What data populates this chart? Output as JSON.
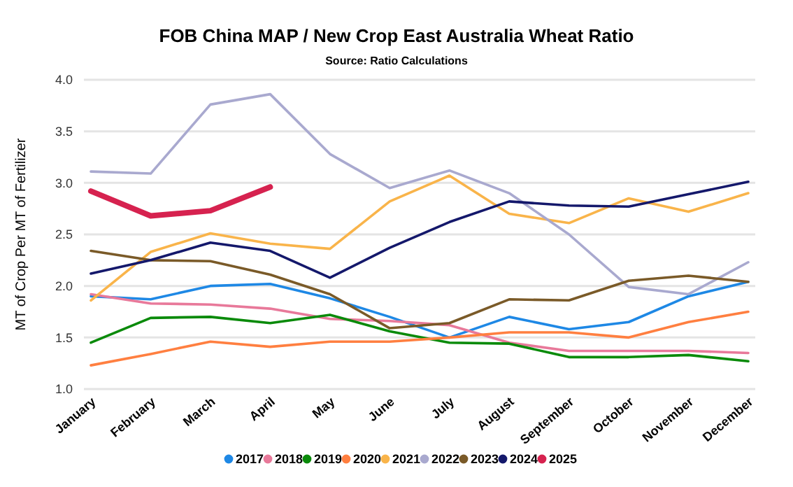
{
  "chart_data": {
    "type": "line",
    "title": "FOB China MAP / New Crop East Australia Wheat Ratio",
    "subtitle": "Source: Ratio Calculations",
    "ylabel": "MT of Crop Per MT of Fertilizer",
    "categories": [
      "January",
      "February",
      "March",
      "April",
      "May",
      "June",
      "July",
      "August",
      "September",
      "October",
      "November",
      "December"
    ],
    "ylim": [
      1,
      4
    ],
    "yticks": [
      {
        "value": 1,
        "label": "1.0"
      },
      {
        "value": 1.5,
        "label": "1.5"
      },
      {
        "value": 2,
        "label": "2.0"
      },
      {
        "value": 2.5,
        "label": "2.5"
      },
      {
        "value": 3,
        "label": "3.0"
      },
      {
        "value": 3.5,
        "label": "3.5"
      },
      {
        "value": 4,
        "label": "4.0"
      }
    ],
    "grid": "y",
    "legend": "bottom",
    "marker": "none",
    "series": [
      {
        "name": "2017",
        "color": "#1e88e5",
        "values": [
          1.9,
          1.87,
          2.0,
          2.02,
          1.88,
          1.7,
          1.5,
          1.7,
          1.58,
          1.65,
          1.9,
          2.04
        ]
      },
      {
        "name": "2018",
        "color": "#e8799a",
        "values": [
          1.92,
          1.83,
          1.82,
          1.78,
          1.68,
          1.66,
          1.62,
          1.45,
          1.37,
          1.37,
          1.37,
          1.35
        ]
      },
      {
        "name": "2019",
        "color": "#0a8a0a",
        "values": [
          1.45,
          1.69,
          1.7,
          1.64,
          1.72,
          1.56,
          1.45,
          1.44,
          1.31,
          1.31,
          1.33,
          1.27
        ]
      },
      {
        "name": "2020",
        "color": "#ff7f40",
        "values": [
          1.23,
          1.34,
          1.46,
          1.41,
          1.46,
          1.46,
          1.5,
          1.55,
          1.55,
          1.5,
          1.65,
          1.75
        ]
      },
      {
        "name": "2021",
        "color": "#f9b44a",
        "values": [
          1.86,
          2.33,
          2.51,
          2.41,
          2.36,
          2.82,
          3.07,
          2.7,
          2.61,
          2.85,
          2.72,
          2.9
        ]
      },
      {
        "name": "2022",
        "color": "#a9a9cf",
        "values": [
          3.11,
          3.09,
          3.76,
          3.86,
          3.28,
          2.95,
          3.12,
          2.9,
          2.5,
          1.99,
          1.92,
          2.23
        ]
      },
      {
        "name": "2023",
        "color": "#7a5a28",
        "values": [
          2.34,
          2.25,
          2.24,
          2.11,
          1.92,
          1.59,
          1.64,
          1.87,
          1.86,
          2.05,
          2.1,
          2.04
        ]
      },
      {
        "name": "2024",
        "color": "#14186b",
        "values": [
          2.12,
          2.25,
          2.42,
          2.34,
          2.08,
          2.37,
          2.62,
          2.82,
          2.78,
          2.77,
          2.89,
          3.01
        ]
      },
      {
        "name": "2025",
        "color": "#d6224f",
        "values": [
          2.92,
          2.68,
          2.73,
          2.96,
          null,
          null,
          null,
          null,
          null,
          null,
          null,
          null
        ]
      }
    ]
  }
}
